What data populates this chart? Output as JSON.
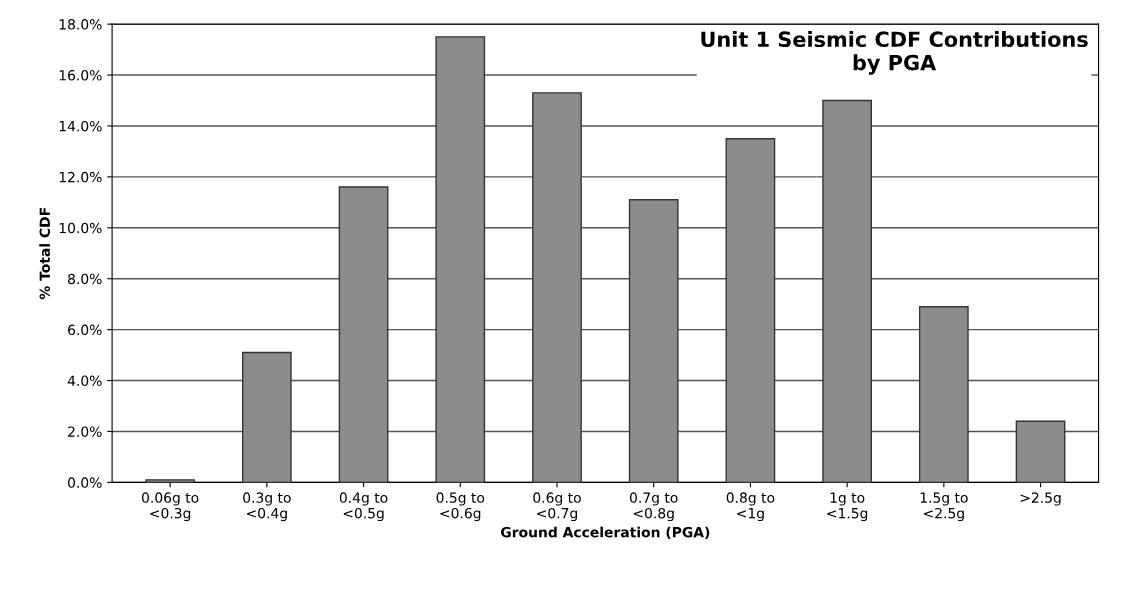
{
  "chart_data": {
    "type": "bar",
    "title": "Unit 1 Seismic CDF Contributions\nby PGA",
    "xlabel": "Ground Acceleration (PGA)",
    "ylabel": "% Total CDF",
    "categories": [
      "0.06g to\n<0.3g",
      "0.3g to\n<0.4g",
      "0.4g to\n<0.5g",
      "0.5g to\n<0.6g",
      "0.6g to\n<0.7g",
      "0.7g to\n<0.8g",
      "0.8g to\n<1g",
      "1g to\n<1.5g",
      "1.5g to\n<2.5g",
      ">2.5g"
    ],
    "values": [
      0.1,
      5.1,
      11.6,
      17.5,
      15.3,
      11.1,
      13.5,
      15.0,
      6.9,
      2.4
    ],
    "color": "#8c8c8c",
    "ylim": [
      0,
      18
    ],
    "yticks": [
      {
        "value": 0,
        "label": "0.0%"
      },
      {
        "value": 2,
        "label": "2.0%"
      },
      {
        "value": 4,
        "label": "4.0%"
      },
      {
        "value": 6,
        "label": "6.0%"
      },
      {
        "value": 8,
        "label": "8.0%"
      },
      {
        "value": 10,
        "label": "10.0%"
      },
      {
        "value": 12,
        "label": "12.0%"
      },
      {
        "value": 14,
        "label": "14.0%"
      },
      {
        "value": 16,
        "label": "16.0%"
      },
      {
        "value": 18,
        "label": "18.0%"
      }
    ],
    "grid": "y"
  }
}
